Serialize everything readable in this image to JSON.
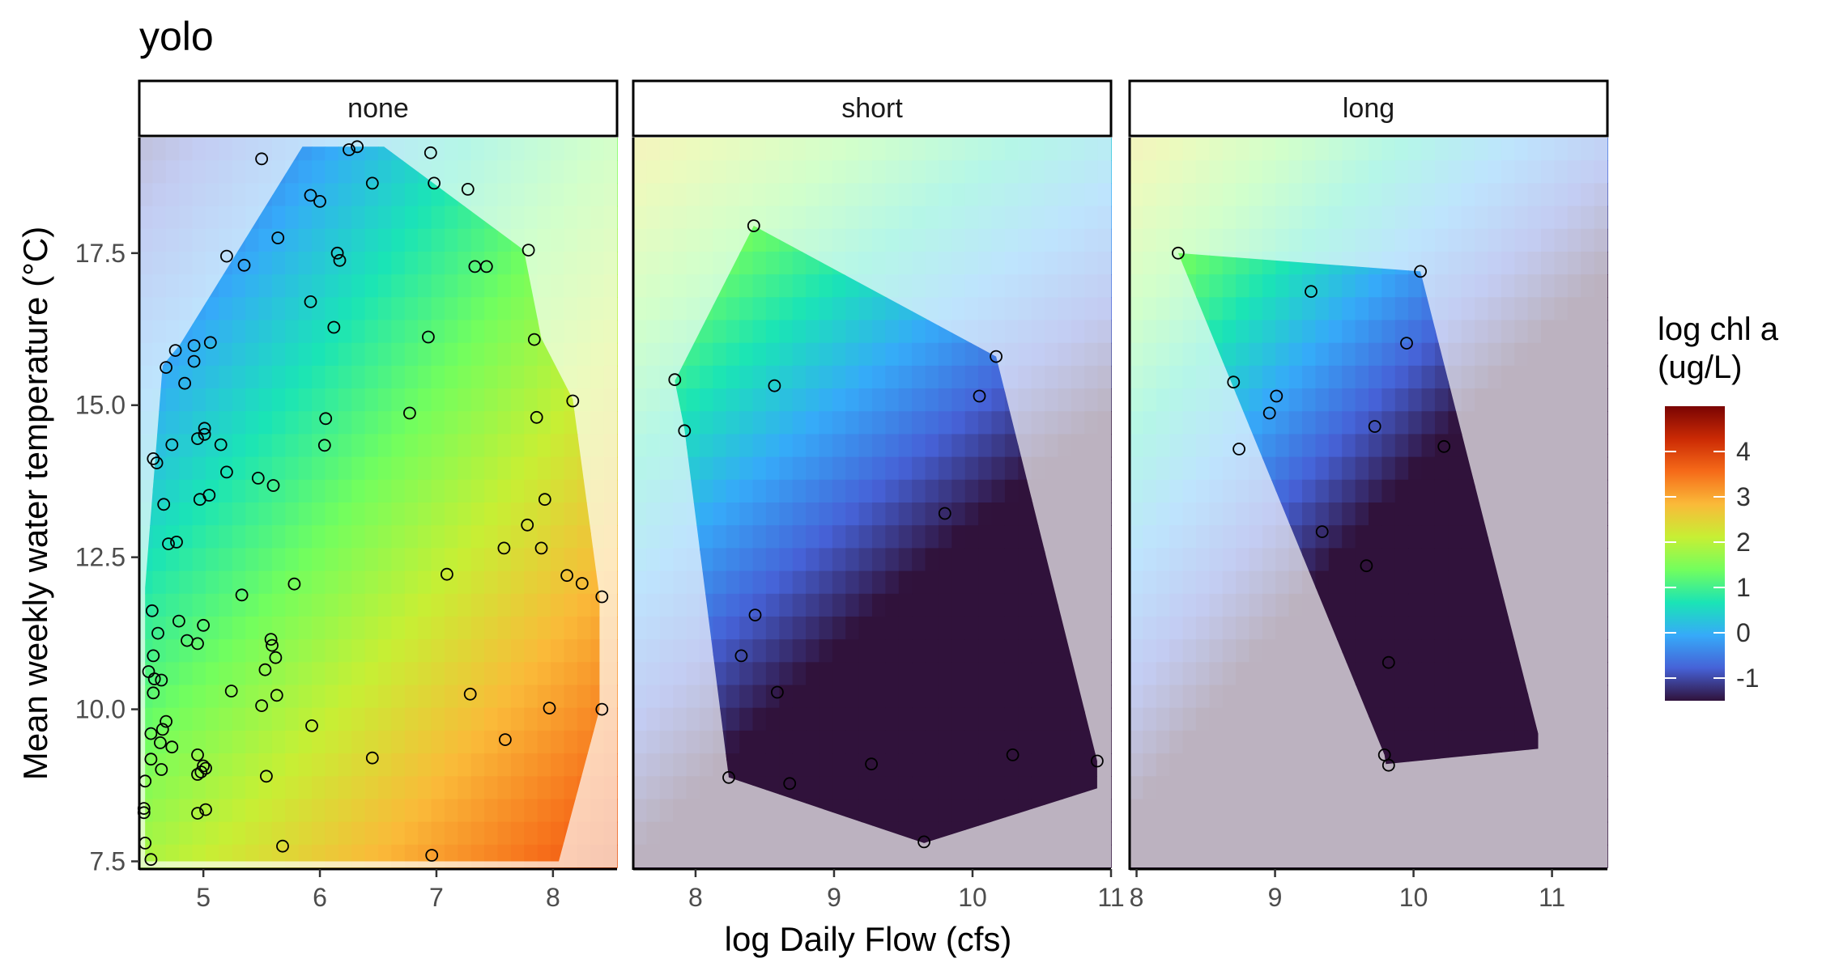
{
  "chart_data": {
    "type": "heatmap",
    "title": "yolo",
    "xlabel": "log Daily Flow (cfs)",
    "ylabel": "Mean weekly water temperature (°C)",
    "y_ticks": [
      7.5,
      10.0,
      12.5,
      15.0,
      17.5
    ],
    "y_tick_labels": [
      "7.5",
      "10.0",
      "12.5",
      "15.0",
      "17.5"
    ],
    "ylim": [
      7.4,
      19.4
    ],
    "legend": {
      "title_line1": "log chl a",
      "title_line2": "(ug/L)",
      "ticks": [
        "4",
        "3",
        "2",
        "1",
        "0",
        "-1"
      ],
      "tick_values": [
        4,
        3,
        2,
        1,
        0,
        -1
      ],
      "range": [
        -1.5,
        5
      ],
      "colors": [
        "#30123b",
        "#4662d7",
        "#36aaf9",
        "#1ae4b6",
        "#72fe5e",
        "#c7ef34",
        "#faba39",
        "#f66b19",
        "#cb2a04",
        "#7a0403"
      ]
    },
    "panels": [
      {
        "name": "none",
        "xlim": [
          4.45,
          8.55
        ],
        "x_ticks": [
          5,
          6,
          7,
          8
        ],
        "x_tick_labels": [
          "5",
          "6",
          "7",
          "8"
        ],
        "model": {
          "a": 2.0,
          "b": 0.55,
          "c": -0.22,
          "d": 0.012
        },
        "hull": [
          [
            4.5,
            7.5
          ],
          [
            8.05,
            7.5
          ],
          [
            8.4,
            10.0
          ],
          [
            8.4,
            11.85
          ],
          [
            8.17,
            15.1
          ],
          [
            7.9,
            16.1
          ],
          [
            7.75,
            17.55
          ],
          [
            6.55,
            19.25
          ],
          [
            5.85,
            19.25
          ],
          [
            4.8,
            16.0
          ],
          [
            4.65,
            15.65
          ],
          [
            4.5,
            12.0
          ]
        ],
        "points": [
          [
            5.5,
            19.05
          ],
          [
            6.25,
            19.2
          ],
          [
            6.32,
            19.25
          ],
          [
            6.95,
            19.15
          ],
          [
            5.92,
            18.45
          ],
          [
            6.0,
            18.35
          ],
          [
            6.45,
            18.65
          ],
          [
            6.98,
            18.65
          ],
          [
            7.27,
            18.55
          ],
          [
            5.64,
            17.75
          ],
          [
            5.2,
            17.45
          ],
          [
            5.35,
            17.3
          ],
          [
            6.15,
            17.5
          ],
          [
            6.17,
            17.38
          ],
          [
            7.33,
            17.28
          ],
          [
            7.43,
            17.28
          ],
          [
            7.79,
            17.55
          ],
          [
            5.92,
            16.7
          ],
          [
            6.12,
            16.28
          ],
          [
            6.93,
            16.12
          ],
          [
            7.84,
            16.08
          ],
          [
            4.92,
            15.98
          ],
          [
            5.06,
            16.03
          ],
          [
            4.76,
            15.9
          ],
          [
            4.92,
            15.72
          ],
          [
            4.68,
            15.62
          ],
          [
            4.84,
            15.36
          ],
          [
            8.17,
            15.07
          ],
          [
            5.01,
            14.62
          ],
          [
            5.01,
            14.52
          ],
          [
            6.05,
            14.78
          ],
          [
            6.77,
            14.87
          ],
          [
            7.86,
            14.8
          ],
          [
            4.95,
            14.45
          ],
          [
            5.15,
            14.35
          ],
          [
            4.73,
            14.35
          ],
          [
            6.04,
            14.34
          ],
          [
            4.57,
            14.12
          ],
          [
            4.6,
            14.05
          ],
          [
            5.2,
            13.9
          ],
          [
            5.47,
            13.8
          ],
          [
            5.6,
            13.68
          ],
          [
            7.93,
            13.45
          ],
          [
            5.05,
            13.52
          ],
          [
            4.97,
            13.45
          ],
          [
            4.66,
            13.37
          ],
          [
            7.78,
            13.03
          ],
          [
            4.77,
            12.75
          ],
          [
            4.7,
            12.72
          ],
          [
            7.58,
            12.65
          ],
          [
            7.9,
            12.65
          ],
          [
            8.12,
            12.2
          ],
          [
            7.09,
            12.22
          ],
          [
            8.25,
            12.07
          ],
          [
            5.78,
            12.06
          ],
          [
            8.42,
            11.85
          ],
          [
            5.33,
            11.88
          ],
          [
            4.56,
            11.62
          ],
          [
            4.79,
            11.45
          ],
          [
            5.0,
            11.38
          ],
          [
            4.61,
            11.25
          ],
          [
            5.58,
            11.15
          ],
          [
            4.86,
            11.13
          ],
          [
            4.95,
            11.08
          ],
          [
            5.59,
            11.05
          ],
          [
            4.57,
            10.88
          ],
          [
            5.62,
            10.85
          ],
          [
            4.53,
            10.62
          ],
          [
            5.53,
            10.65
          ],
          [
            4.58,
            10.5
          ],
          [
            4.64,
            10.48
          ],
          [
            4.57,
            10.27
          ],
          [
            5.24,
            10.3
          ],
          [
            7.29,
            10.25
          ],
          [
            5.63,
            10.23
          ],
          [
            5.5,
            10.06
          ],
          [
            7.97,
            10.02
          ],
          [
            8.42,
            10.0
          ],
          [
            4.68,
            9.8
          ],
          [
            4.65,
            9.67
          ],
          [
            5.93,
            9.73
          ],
          [
            4.55,
            9.6
          ],
          [
            4.63,
            9.45
          ],
          [
            7.59,
            9.5
          ],
          [
            4.73,
            9.38
          ],
          [
            4.95,
            9.25
          ],
          [
            6.45,
            9.2
          ],
          [
            4.55,
            9.18
          ],
          [
            5.0,
            9.07
          ],
          [
            5.02,
            9.03
          ],
          [
            4.64,
            9.01
          ],
          [
            4.98,
            8.97
          ],
          [
            4.95,
            8.93
          ],
          [
            5.54,
            8.9
          ],
          [
            4.5,
            8.82
          ],
          [
            5.02,
            8.35
          ],
          [
            4.95,
            8.29
          ],
          [
            4.49,
            8.37
          ],
          [
            4.49,
            8.3
          ],
          [
            4.5,
            7.8
          ],
          [
            5.68,
            7.75
          ],
          [
            4.55,
            7.53
          ],
          [
            6.96,
            7.6
          ]
        ]
      },
      {
        "name": "short",
        "xlim": [
          7.55,
          11.0
        ],
        "x_ticks": [
          8,
          9,
          10,
          11
        ],
        "x_tick_labels": [
          "8",
          "9",
          "10",
          "11"
        ],
        "model": {
          "a": 0.55,
          "b": -0.75,
          "c": 0.32,
          "d": 0.02
        },
        "hull": [
          [
            9.65,
            7.8
          ],
          [
            10.9,
            8.7
          ],
          [
            10.9,
            9.15
          ],
          [
            10.17,
            15.8
          ],
          [
            8.42,
            17.95
          ],
          [
            7.85,
            15.4
          ],
          [
            7.92,
            14.6
          ],
          [
            8.24,
            8.88
          ]
        ],
        "points": [
          [
            8.42,
            17.95
          ],
          [
            10.17,
            15.8
          ],
          [
            7.85,
            15.42
          ],
          [
            8.57,
            15.32
          ],
          [
            10.05,
            15.15
          ],
          [
            7.92,
            14.58
          ],
          [
            9.8,
            13.22
          ],
          [
            8.43,
            11.55
          ],
          [
            8.33,
            10.88
          ],
          [
            8.59,
            10.28
          ],
          [
            10.29,
            9.25
          ],
          [
            10.9,
            9.15
          ],
          [
            9.27,
            9.1
          ],
          [
            8.24,
            8.88
          ],
          [
            8.68,
            8.78
          ],
          [
            9.65,
            7.82
          ]
        ]
      },
      {
        "name": "long",
        "xlim": [
          7.95,
          11.4
        ],
        "x_ticks": [
          8,
          9,
          10,
          11
        ],
        "x_tick_labels": [
          "8",
          "9",
          "10",
          "11"
        ],
        "model": {
          "a": 0.95,
          "b": -1.0,
          "c": 0.33,
          "d": 0.02
        },
        "hull": [
          [
            8.3,
            17.5
          ],
          [
            10.05,
            17.2
          ],
          [
            10.9,
            9.6
          ],
          [
            10.9,
            9.35
          ],
          [
            9.8,
            9.1
          ],
          [
            9.79,
            9.25
          ]
        ],
        "points": [
          [
            8.3,
            17.5
          ],
          [
            10.05,
            17.2
          ],
          [
            9.26,
            16.87
          ],
          [
            9.95,
            16.02
          ],
          [
            8.7,
            15.38
          ],
          [
            9.01,
            15.15
          ],
          [
            8.96,
            14.87
          ],
          [
            9.72,
            14.65
          ],
          [
            10.22,
            14.32
          ],
          [
            8.74,
            14.28
          ],
          [
            9.34,
            12.92
          ],
          [
            9.66,
            12.36
          ],
          [
            9.82,
            10.77
          ],
          [
            9.79,
            9.25
          ],
          [
            9.82,
            9.08
          ]
        ]
      }
    ]
  }
}
